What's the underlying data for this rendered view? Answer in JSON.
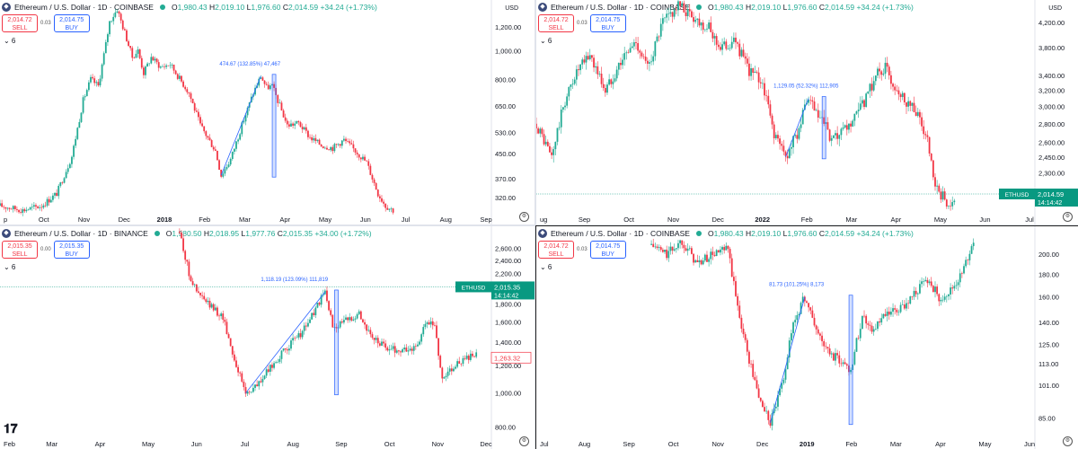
{
  "colors": {
    "up": "#22ab94",
    "down": "#f23645",
    "measure": "#2962ff",
    "tag": "#089981",
    "axis_text": "#131722"
  },
  "panels": [
    {
      "header": {
        "symbol": "Ethereum / U.S. Dollar · 1D · COINBASE",
        "o_label": "O",
        "o": "1,980.43",
        "h_label": "H",
        "h": "2,019.10",
        "l_label": "L",
        "l": "1,976.60",
        "c_label": "C",
        "c": "2,014.59",
        "change": "+34.24 (+1.73%)"
      },
      "trade": {
        "sell_price": "2,014.72",
        "sell_label": "SELL",
        "spread": "0.03",
        "buy_price": "2,014.75",
        "buy_label": "BUY"
      },
      "collapse": "⌄ 6",
      "currency": "USD",
      "measure_label": "474.67 (132.85%) 47,467",
      "chart_data": {
        "type": "candlestick",
        "scale": "log",
        "ylim": [
          290,
          1420
        ],
        "y_ticks": [
          "1,200.00",
          "1,000.00",
          "800.00",
          "650.00",
          "530.00",
          "450.00",
          "370.00",
          "320.00"
        ],
        "x_ticks": [
          "p",
          "Oct",
          "Nov",
          "Dec",
          "2018",
          "Feb",
          "Mar",
          "Apr",
          "May",
          "Jun",
          "Jul",
          "Aug",
          "Sep"
        ],
        "path": [
          [
            0,
            300
          ],
          [
            12,
            290
          ],
          [
            22,
            300
          ],
          [
            30,
            330
          ],
          [
            38,
            440
          ],
          [
            44,
            680
          ],
          [
            48,
            800
          ],
          [
            52,
            760
          ],
          [
            56,
            1050
          ],
          [
            58,
            1250
          ],
          [
            62,
            1380
          ],
          [
            66,
            1150
          ],
          [
            70,
            950
          ],
          [
            73,
            1000
          ],
          [
            76,
            840
          ],
          [
            80,
            950
          ],
          [
            85,
            880
          ],
          [
            90,
            900
          ],
          [
            100,
            720
          ],
          [
            106,
            560
          ],
          [
            114,
            460
          ],
          [
            117,
            380
          ],
          [
            122,
            430
          ],
          [
            128,
            560
          ],
          [
            134,
            720
          ],
          [
            138,
            820
          ],
          [
            141,
            750
          ],
          [
            144,
            760
          ],
          [
            152,
            560
          ],
          [
            158,
            570
          ],
          [
            164,
            510
          ],
          [
            170,
            480
          ],
          [
            176,
            470
          ],
          [
            182,
            500
          ],
          [
            188,
            460
          ],
          [
            194,
            420
          ],
          [
            200,
            330
          ],
          [
            204,
            300
          ],
          [
            208,
            290
          ]
        ],
        "measure": {
          "from": 117,
          "to": 138,
          "bar_day": 145
        }
      }
    },
    {
      "header": {
        "symbol": "Ethereum / U.S. Dollar · 1D · COINBASE",
        "o_label": "O",
        "o": "1,980.43",
        "h_label": "H",
        "h": "2,019.10",
        "l_label": "L",
        "l": "1,976.60",
        "c_label": "C",
        "c": "2,014.59",
        "change": "+34.24 (+1.73%)"
      },
      "trade": {
        "sell_price": "2,014.72",
        "sell_label": "SELL",
        "spread": "0.03",
        "buy_price": "2,014.75",
        "buy_label": "BUY"
      },
      "collapse": "⌄ 6",
      "currency": "USD",
      "measure_label": "1,129.05 (52.32%) 112,905",
      "price_tag": {
        "symbol": "ETHUSD",
        "price": "2,014.59",
        "time": "14:14:42"
      },
      "chart_data": {
        "type": "candlestick",
        "scale": "log",
        "ylim": [
          1980,
          4500
        ],
        "y_ticks": [
          "4,200.00",
          "3,800.00",
          "3,400.00",
          "3,200.00",
          "3,000.00",
          "2,800.00",
          "2,600.00",
          "2,450.00",
          "2,300.00",
          "2,140.00"
        ],
        "x_ticks": [
          "ug",
          "Sep",
          "Oct",
          "Nov",
          "Dec",
          "2022",
          "Feb",
          "Mar",
          "Apr",
          "May",
          "Jun",
          "Jul"
        ],
        "path": [
          [
            0,
            2800
          ],
          [
            8,
            2450
          ],
          [
            14,
            3000
          ],
          [
            20,
            3400
          ],
          [
            28,
            3700
          ],
          [
            36,
            3200
          ],
          [
            44,
            3600
          ],
          [
            52,
            3900
          ],
          [
            58,
            3500
          ],
          [
            66,
            4200
          ],
          [
            74,
            4500
          ],
          [
            82,
            4300
          ],
          [
            90,
            4100
          ],
          [
            96,
            3800
          ],
          [
            104,
            3900
          ],
          [
            110,
            3500
          ],
          [
            118,
            3300
          ],
          [
            124,
            2700
          ],
          [
            130,
            2450
          ],
          [
            136,
            2700
          ],
          [
            142,
            3100
          ],
          [
            146,
            2900
          ],
          [
            150,
            2800
          ],
          [
            154,
            2600
          ],
          [
            160,
            2700
          ],
          [
            166,
            2850
          ],
          [
            172,
            3100
          ],
          [
            178,
            3450
          ],
          [
            182,
            3500
          ],
          [
            186,
            3300
          ],
          [
            192,
            3100
          ],
          [
            198,
            2950
          ],
          [
            204,
            2600
          ],
          [
            208,
            2150
          ],
          [
            214,
            2050
          ],
          [
            218,
            2010
          ]
        ],
        "measure": {
          "from": 130,
          "to": 142,
          "bar_day": 150
        }
      }
    },
    {
      "header": {
        "symbol": "Ethereum / U.S. Dollar · 1D · BINANCE",
        "o_label": "O",
        "o": "1,980.50",
        "h_label": "H",
        "h": "2,018.95",
        "l_label": "L",
        "l": "1,977.76",
        "c_label": "C",
        "c": "2,015.35",
        "change": "+34.00 (+1.72%)"
      },
      "trade": {
        "sell_price": "2,015.35",
        "sell_label": "SELL",
        "spread": "0.00",
        "buy_price": "2,015.35",
        "buy_label": "BUY"
      },
      "collapse": "⌄ 6",
      "currency": "",
      "measure_label": "1,118.19 (123.09%) 111,819",
      "price_tag": {
        "symbol": "ETHUSD",
        "price": "2,015.35",
        "time": "14:14:42"
      },
      "side_price": "1,263.32",
      "chart_data": {
        "type": "candlestick",
        "scale": "log",
        "ylim": [
          760,
          2900
        ],
        "y_ticks": [
          "2,600.00",
          "2,400.00",
          "2,200.00",
          "2,000.00",
          "1,800.00",
          "1,600.00",
          "1,400.00",
          "1,200.00",
          "1,000.00",
          "800.00"
        ],
        "x_ticks": [
          "Feb",
          "Mar",
          "Apr",
          "May",
          "Jun",
          "Jul",
          "Aug",
          "Sep",
          "Oct",
          "Nov",
          "Dec"
        ],
        "path": [
          [
            95,
            2900
          ],
          [
            100,
            2200
          ],
          [
            104,
            1950
          ],
          [
            110,
            1800
          ],
          [
            118,
            1650
          ],
          [
            124,
            1250
          ],
          [
            130,
            1000
          ],
          [
            136,
            1050
          ],
          [
            144,
            1200
          ],
          [
            152,
            1350
          ],
          [
            160,
            1500
          ],
          [
            166,
            1700
          ],
          [
            172,
            1950
          ],
          [
            176,
            1550
          ],
          [
            182,
            1600
          ],
          [
            190,
            1700
          ],
          [
            196,
            1450
          ],
          [
            204,
            1350
          ],
          [
            212,
            1320
          ],
          [
            220,
            1350
          ],
          [
            226,
            1600
          ],
          [
            230,
            1550
          ],
          [
            234,
            1100
          ],
          [
            240,
            1200
          ],
          [
            246,
            1250
          ],
          [
            252,
            1280
          ]
        ],
        "measure": {
          "from": 130,
          "to": 172,
          "bar_day": 178
        }
      }
    },
    {
      "header": {
        "symbol": "Ethereum / U.S. Dollar · 1D · COINBASE",
        "o_label": "O",
        "o": "1,980.43",
        "h_label": "H",
        "h": "2,019.10",
        "l_label": "L",
        "l": "1,976.60",
        "c_label": "C",
        "c": "2,014.59",
        "change": "+34.24 (+1.73%)"
      },
      "trade": {
        "sell_price": "2,014.72",
        "sell_label": "SELL",
        "spread": "0.03",
        "buy_price": "2,014.75",
        "buy_label": "BUY"
      },
      "collapse": "⌄ 6",
      "currency": "",
      "measure_label": "81.73 (101.25%) 8,173",
      "chart_data": {
        "type": "candlestick",
        "scale": "log",
        "ylim": [
          78,
          225
        ],
        "y_ticks": [
          "200.00",
          "180.00",
          "160.00",
          "140.00",
          "125.00",
          "113.00",
          "101.00",
          "85.00",
          "76.00"
        ],
        "x_ticks": [
          "Jul",
          "Aug",
          "Sep",
          "Oct",
          "Nov",
          "Dec",
          "2019",
          "Feb",
          "Mar",
          "Apr",
          "May",
          "Jun"
        ],
        "path": [
          [
            60,
            210
          ],
          [
            68,
            200
          ],
          [
            76,
            215
          ],
          [
            84,
            190
          ],
          [
            92,
            200
          ],
          [
            100,
            205
          ],
          [
            104,
            160
          ],
          [
            110,
            120
          ],
          [
            116,
            95
          ],
          [
            122,
            83
          ],
          [
            128,
            100
          ],
          [
            134,
            140
          ],
          [
            140,
            160
          ],
          [
            146,
            135
          ],
          [
            152,
            120
          ],
          [
            158,
            115
          ],
          [
            164,
            110
          ],
          [
            170,
            145
          ],
          [
            176,
            135
          ],
          [
            182,
            145
          ],
          [
            190,
            150
          ],
          [
            198,
            165
          ],
          [
            204,
            175
          ],
          [
            210,
            160
          ],
          [
            216,
            165
          ],
          [
            222,
            180
          ],
          [
            228,
            215
          ]
        ],
        "measure": {
          "from": 122,
          "to": 140,
          "bar_day": 164
        }
      }
    }
  ]
}
